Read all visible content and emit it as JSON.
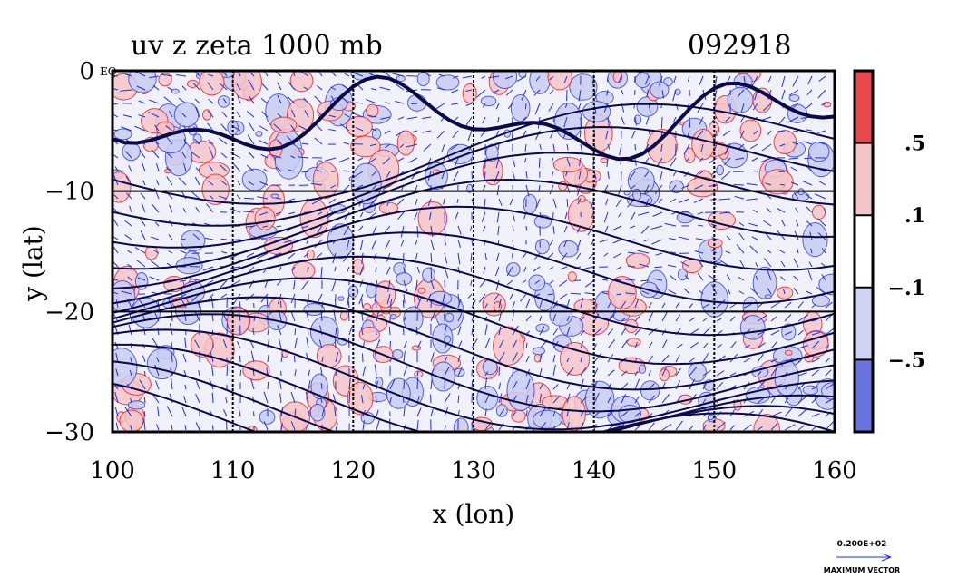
{
  "chart_data": {
    "type": "heatmap",
    "title": "uv z zeta 1000 mb",
    "time_label": "092918",
    "xlabel": "x (lon)",
    "ylabel": "y (lat)",
    "xlim": [
      100,
      160
    ],
    "ylim": [
      -30,
      0
    ],
    "x_ticks": [
      100,
      110,
      120,
      130,
      140,
      150,
      160
    ],
    "y_ticks": [
      0,
      -10,
      -20,
      -30
    ],
    "x_tick_labels": [
      "100",
      "110",
      "120",
      "130",
      "140",
      "150",
      "160"
    ],
    "y_tick_labels": [
      "0",
      "−10",
      "−20",
      "−30"
    ],
    "y_top_suffix": "EQ",
    "grid": true,
    "colorbar": {
      "levels": [
        ".5",
        ".1",
        "−.1",
        "−.5"
      ],
      "bands": [
        {
          "color": "#e8484c"
        },
        {
          "color": "#f4c4c6"
        },
        {
          "color": "#ffffff"
        },
        {
          "color": "#d0d4f4"
        },
        {
          "color": "#6a74e0"
        }
      ]
    },
    "vector_legend": {
      "value": "0.200E+02",
      "label": "MAXIMUM VECTOR"
    },
    "colors": {
      "positive_contour": "#e8252b",
      "negative_fill": "#dde0f6",
      "positive_fill": "#f6c6c8",
      "geopotential_contour": "#0a0a4a",
      "wind_vectors": "#1f2fe0"
    }
  }
}
